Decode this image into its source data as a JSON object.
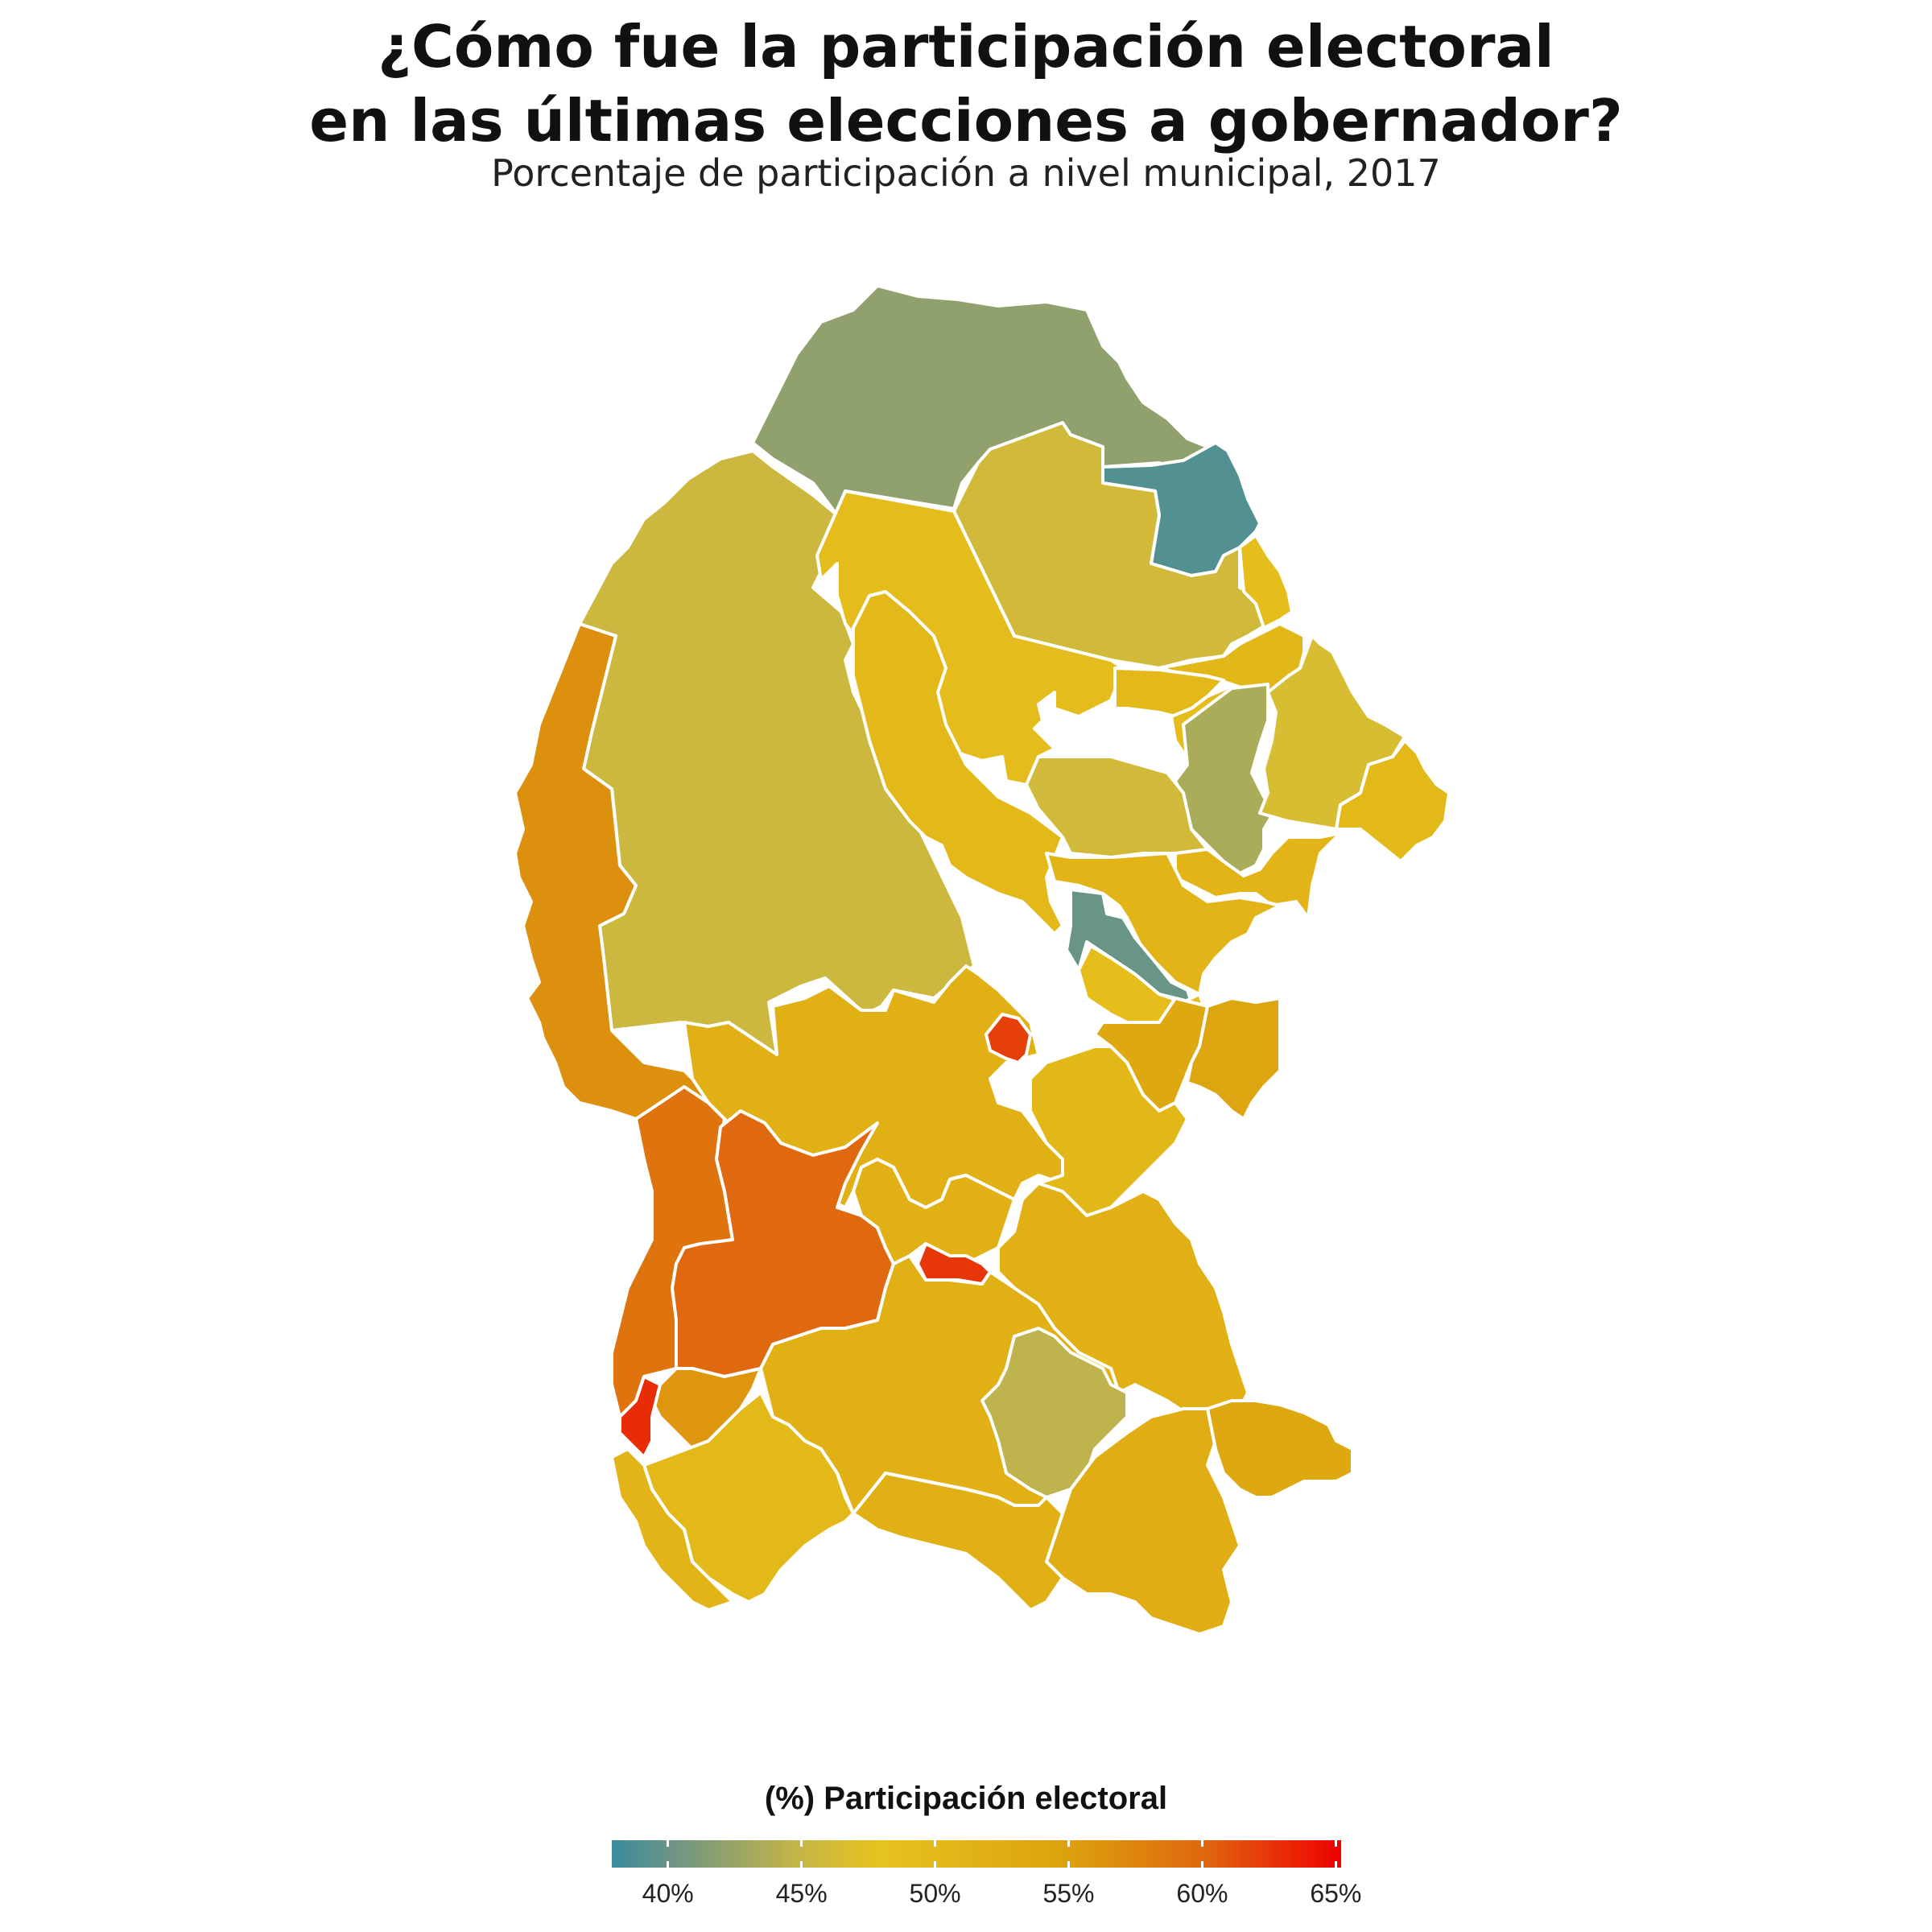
{
  "title": {
    "line1": "¿Cómo fue la participación electoral",
    "line2": "en las últimas elecciones a gobernador?"
  },
  "subtitle": "Porcentaje de participación a nivel municipal, 2017",
  "legend": {
    "title": "(%) Participación electoral",
    "ticks": [
      {
        "value": 40,
        "label": "40%"
      },
      {
        "value": 45,
        "label": "45%"
      },
      {
        "value": 50,
        "label": "50%"
      },
      {
        "value": 55,
        "label": "55%"
      },
      {
        "value": 60,
        "label": "60%"
      },
      {
        "value": 65,
        "label": "65%"
      }
    ],
    "range": [
      37.9,
      65.2
    ],
    "color_stops": [
      {
        "value": 37.9,
        "color": "#3b8a9e"
      },
      {
        "value": 41,
        "color": "#7d9a7a"
      },
      {
        "value": 45,
        "color": "#c7b646"
      },
      {
        "value": 48,
        "color": "#e6c31e"
      },
      {
        "value": 55,
        "color": "#dca10e"
      },
      {
        "value": 60,
        "color": "#e0680e"
      },
      {
        "value": 65.2,
        "color": "#ee0000"
      }
    ]
  },
  "municipalities": [
    {
      "id": "m01",
      "value": 42.0
    },
    {
      "id": "m02",
      "value": 45.5
    },
    {
      "id": "m03",
      "value": 39.0
    },
    {
      "id": "m04",
      "value": 46.0
    },
    {
      "id": "m05",
      "value": 49.5
    },
    {
      "id": "m06",
      "value": 50.0
    },
    {
      "id": "m07",
      "value": 49.0
    },
    {
      "id": "m08",
      "value": 50.5
    },
    {
      "id": "m09",
      "value": 50.0
    },
    {
      "id": "m10",
      "value": 49.5
    },
    {
      "id": "m11",
      "value": 43.5
    },
    {
      "id": "m12",
      "value": 46.5
    },
    {
      "id": "m13",
      "value": 50.0
    },
    {
      "id": "m14",
      "value": 46.0
    },
    {
      "id": "m15",
      "value": 40.0
    },
    {
      "id": "m16",
      "value": 51.0
    },
    {
      "id": "m17",
      "value": 62.0
    },
    {
      "id": "m18",
      "value": 51.0
    },
    {
      "id": "m19",
      "value": 49.0
    },
    {
      "id": "m20",
      "value": 52.0
    },
    {
      "id": "m21",
      "value": 56.5
    },
    {
      "id": "m22",
      "value": 59.0
    },
    {
      "id": "m23",
      "value": 60.0
    },
    {
      "id": "m24",
      "value": 52.0
    },
    {
      "id": "m25",
      "value": 53.5
    },
    {
      "id": "m26",
      "value": 62.5
    },
    {
      "id": "m27",
      "value": 54.0
    },
    {
      "id": "m28",
      "value": 63.0
    },
    {
      "id": "m29",
      "value": 50.5
    },
    {
      "id": "m30",
      "value": 44.5
    },
    {
      "id": "m31",
      "value": 56.0
    },
    {
      "id": "m32",
      "value": 52.0
    },
    {
      "id": "m33",
      "value": 50.0
    },
    {
      "id": "m34",
      "value": 52.0
    },
    {
      "id": "m35",
      "value": 51.0
    },
    {
      "id": "m36",
      "value": 52.5
    },
    {
      "id": "m37",
      "value": 53.5
    },
    {
      "id": "m38",
      "value": 52.0
    }
  ]
}
